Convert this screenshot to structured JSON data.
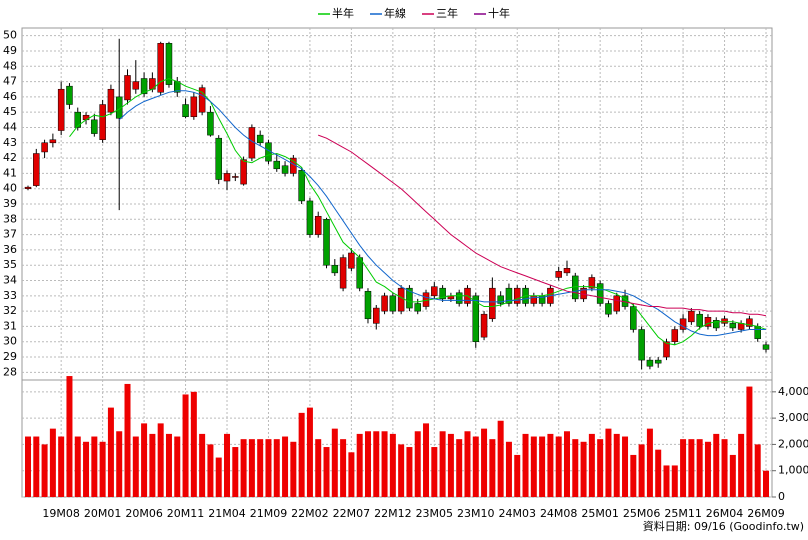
{
  "chart_data": {
    "type": "candlestick",
    "footnote": "資料日期: 09/16 (Goodinfo.tw)",
    "categories": [
      null,
      null,
      null,
      null,
      "19M08",
      null,
      null,
      null,
      null,
      "20M01",
      null,
      null,
      null,
      null,
      "20M06",
      null,
      null,
      null,
      null,
      "20M11",
      null,
      null,
      null,
      null,
      "21M04",
      null,
      null,
      null,
      null,
      "21M09",
      null,
      null,
      null,
      null,
      "22M02",
      null,
      null,
      null,
      null,
      "22M07",
      null,
      null,
      null,
      null,
      "22M12",
      null,
      null,
      null,
      null,
      "23M05",
      null,
      null,
      null,
      null,
      "23M10",
      null,
      null,
      null,
      null,
      "24M03",
      null,
      null,
      null,
      null,
      "24M08",
      null,
      null,
      null,
      null,
      "25M01",
      null,
      null,
      null,
      null,
      "25M06",
      null,
      null,
      null,
      null,
      "25M11",
      null,
      null,
      null,
      null,
      "26M04",
      null,
      null,
      null,
      null,
      "26M09"
    ],
    "open": [
      40,
      40.2,
      42.4,
      43,
      43.8,
      46.7,
      45,
      44.5,
      44.5,
      43.2,
      45,
      46,
      45.8,
      46.5,
      47.2,
      46.5,
      46.3,
      49.5,
      47,
      45.5,
      44.7,
      45,
      45,
      43.3,
      40.5,
      40.8,
      40.3,
      42,
      43.5,
      43,
      41.8,
      41.5,
      41,
      41.2,
      39.2,
      37,
      38,
      35,
      33.5,
      34.8,
      35.5,
      33.3,
      31.2,
      32,
      33,
      32,
      33.5,
      32.5,
      32.3,
      33,
      33.5,
      32.8,
      33.2,
      32.5,
      33,
      30.3,
      31.5,
      33,
      33.5,
      32.5,
      33.5,
      32.5,
      33,
      32.5,
      34.2,
      34.5,
      34.3,
      32.8,
      33.5,
      33.8,
      32.5,
      32,
      33,
      32.3,
      30.8,
      28.8,
      28.8,
      29,
      30,
      30.8,
      31.3,
      31.8,
      31,
      31.4,
      31.2,
      31.2,
      30.8,
      31,
      31,
      29.8
    ],
    "high": [
      40.2,
      42.6,
      43.2,
      43.6,
      47,
      46.9,
      45.3,
      45,
      44.9,
      45.8,
      46.8,
      49.8,
      47.8,
      48.4,
      47.6,
      47.6,
      49.6,
      49.6,
      47.3,
      45.9,
      46.3,
      46.8,
      45.4,
      43.5,
      41.2,
      41,
      42.1,
      44.2,
      43.8,
      43.2,
      42.3,
      41.8,
      42.2,
      41.4,
      39.4,
      38.5,
      38.1,
      35.4,
      35.7,
      36.1,
      35.7,
      33.5,
      32.4,
      33.2,
      33.2,
      33.7,
      33.7,
      32.8,
      33.4,
      33.9,
      33.7,
      33.2,
      33.4,
      33.7,
      33.2,
      32,
      34.2,
      33.3,
      33.8,
      33.7,
      33.7,
      33.2,
      33.2,
      33.7,
      34.9,
      35.3,
      34.5,
      33.7,
      34.4,
      34,
      32.7,
      33.2,
      33.4,
      32.5,
      31,
      29,
      29,
      30.2,
      31,
      31.8,
      32.2,
      32,
      31.8,
      31.6,
      31.7,
      31.4,
      31.4,
      31.7,
      31.2,
      30
    ],
    "low": [
      39.9,
      40.1,
      42,
      42.7,
      43.5,
      45.2,
      43.8,
      44.2,
      43.4,
      43,
      44.8,
      38.6,
      45.5,
      46.2,
      46,
      46.3,
      46.1,
      46.6,
      46,
      44.6,
      44.5,
      44.8,
      43.4,
      40.3,
      39.9,
      40.5,
      40.2,
      41.8,
      42.8,
      41.6,
      41.1,
      40.8,
      40.8,
      39,
      36.8,
      36.8,
      34.8,
      34.3,
      33.3,
      34.6,
      33.3,
      31.2,
      30.8,
      31.8,
      31.8,
      31.8,
      32,
      31.8,
      32.1,
      32.8,
      32.6,
      32.6,
      32.3,
      32.3,
      29.6,
      30.1,
      31.3,
      32.3,
      32.3,
      32.3,
      32.3,
      32.3,
      32.3,
      32.3,
      34,
      34.3,
      32.6,
      32.6,
      33.3,
      32.3,
      31.6,
      31.8,
      32.1,
      30.6,
      28.2,
      28.2,
      28.3,
      28.8,
      29.8,
      30.6,
      31.1,
      30.8,
      30.8,
      30.7,
      31,
      30.7,
      30.6,
      30.8,
      30,
      29.3
    ],
    "close": [
      40.1,
      42.3,
      43,
      43.2,
      46.5,
      45.5,
      44,
      44.8,
      43.6,
      45.5,
      46.5,
      44.6,
      47.4,
      47,
      46.2,
      47.2,
      49.5,
      46.8,
      46.3,
      44.7,
      46,
      46.6,
      43.5,
      40.6,
      41,
      40.8,
      41.9,
      44,
      43,
      41.8,
      41.3,
      41,
      42,
      39.2,
      37,
      38.2,
      35,
      34.5,
      35.5,
      35.8,
      33.5,
      31.5,
      32.2,
      33,
      32,
      33.5,
      32.2,
      32,
      33.2,
      33.6,
      32.8,
      33,
      32.5,
      33.5,
      30,
      31.8,
      33.5,
      32.5,
      32.5,
      33.5,
      32.5,
      33,
      32.5,
      33.5,
      34.6,
      34.8,
      32.8,
      33.5,
      34.2,
      32.5,
      31.8,
      33,
      32.3,
      30.8,
      28.8,
      28.4,
      28.6,
      30,
      30.8,
      31.5,
      32,
      31,
      31.6,
      30.9,
      31.5,
      30.9,
      31.2,
      31.5,
      30.2,
      29.5
    ],
    "up_color": "#e00000",
    "down_color": "#00a000",
    "ylim": [
      27.5,
      50.5
    ],
    "yticks": [
      28,
      29,
      30,
      31,
      32,
      33,
      34,
      35,
      36,
      37,
      38,
      39,
      40,
      41,
      42,
      43,
      44,
      45,
      46,
      47,
      48,
      49,
      50
    ],
    "grid": true,
    "series": [
      {
        "name": "半年",
        "color": "#00cc00",
        "values": [
          null,
          null,
          null,
          null,
          null,
          43.4,
          44.1,
          44.5,
          44.8,
          44.7,
          44.9,
          45.2,
          45.6,
          46.0,
          46.3,
          46.5,
          47.0,
          47.2,
          47.0,
          46.7,
          46.5,
          46.3,
          45.7,
          44.6,
          43.6,
          42.5,
          41.8,
          41.7,
          42.0,
          42.2,
          42.3,
          42.1,
          41.8,
          41.4,
          40.3,
          39.5,
          38.5,
          37.5,
          36.5,
          36.0,
          35.5,
          34.7,
          33.9,
          33.6,
          33.2,
          32.9,
          32.6,
          32.6,
          32.7,
          32.8,
          32.9,
          33.0,
          33.0,
          33.0,
          32.6,
          32.3,
          32.3,
          32.4,
          32.6,
          32.8,
          33.0,
          33.0,
          33.0,
          33.1,
          33.3,
          33.5,
          33.6,
          33.6,
          33.6,
          33.5,
          33.3,
          33.1,
          32.8,
          32.4,
          31.7,
          31.0,
          30.3,
          29.9,
          29.8,
          30.0,
          30.4,
          30.9,
          31.2,
          31.3,
          31.3,
          31.3,
          31.2,
          31.1,
          31.0,
          30.8
        ]
      },
      {
        "name": "年線",
        "color": "#1166cc",
        "values": [
          null,
          null,
          null,
          null,
          null,
          null,
          null,
          null,
          null,
          null,
          null,
          44.5,
          45.0,
          45.4,
          45.7,
          45.9,
          46.1,
          46.3,
          46.4,
          46.4,
          46.3,
          46.1,
          45.7,
          45.2,
          44.6,
          44.0,
          43.5,
          43.1,
          42.8,
          42.5,
          42.2,
          41.9,
          41.6,
          41.3,
          40.8,
          40.2,
          39.5,
          38.7,
          37.9,
          37.1,
          36.3,
          35.6,
          35.0,
          34.5,
          34.0,
          33.6,
          33.3,
          33.1,
          32.9,
          32.8,
          32.7,
          32.7,
          32.7,
          32.7,
          32.7,
          32.6,
          32.6,
          32.6,
          32.7,
          32.7,
          32.8,
          32.9,
          32.9,
          33.0,
          33.1,
          33.2,
          33.3,
          33.4,
          33.4,
          33.4,
          33.4,
          33.3,
          33.2,
          33.0,
          32.7,
          32.4,
          32.1,
          31.7,
          31.3,
          31.0,
          30.7,
          30.5,
          30.4,
          30.4,
          30.5,
          30.6,
          30.7,
          30.8,
          30.8,
          30.8
        ]
      },
      {
        "name": "三年",
        "color": "#cc0055",
        "values": [
          null,
          null,
          null,
          null,
          null,
          null,
          null,
          null,
          null,
          null,
          null,
          null,
          null,
          null,
          null,
          null,
          null,
          null,
          null,
          null,
          null,
          null,
          null,
          null,
          null,
          null,
          null,
          null,
          null,
          null,
          null,
          null,
          null,
          null,
          null,
          43.5,
          43.3,
          43.0,
          42.7,
          42.4,
          42.0,
          41.6,
          41.2,
          40.8,
          40.4,
          40.0,
          39.5,
          39.0,
          38.5,
          38.0,
          37.5,
          37.0,
          36.6,
          36.2,
          35.8,
          35.5,
          35.2,
          34.9,
          34.7,
          34.5,
          34.3,
          34.1,
          33.9,
          33.7,
          33.5,
          33.3,
          33.2,
          33.1,
          33.0,
          32.9,
          32.8,
          32.7,
          32.6,
          32.5,
          32.4,
          32.3,
          32.3,
          32.2,
          32.2,
          32.2,
          32.1,
          32.1,
          32.0,
          32.0,
          32.0,
          31.9,
          31.9,
          31.8,
          31.8,
          31.7
        ]
      },
      {
        "name": "十年",
        "color": "#880088",
        "values": [
          null,
          null,
          null,
          null,
          null,
          null,
          null,
          null,
          null,
          null,
          null,
          null,
          null,
          null,
          null,
          null,
          null,
          null,
          null,
          null,
          null,
          null,
          null,
          null,
          null,
          null,
          null,
          null,
          null,
          null,
          null,
          null,
          null,
          null,
          null,
          null,
          null,
          null,
          null,
          null,
          null,
          null,
          null,
          null,
          null,
          null,
          null,
          null,
          null,
          null,
          null,
          null,
          null,
          null,
          null,
          null,
          null,
          null,
          null,
          null,
          null,
          null,
          null,
          null,
          null,
          null,
          null,
          null,
          null,
          null,
          null,
          null,
          null,
          null,
          null,
          null,
          null,
          null,
          null,
          null,
          null,
          null,
          null,
          null,
          null,
          null,
          null,
          null,
          null,
          null
        ]
      }
    ],
    "volume": {
      "color": "#ee0000",
      "ylim": [
        0,
        4450
      ],
      "yticks": [
        0,
        {
          "value": 1000,
          "label": "1,000"
        },
        {
          "value": 2000,
          "label": "2,000"
        },
        {
          "value": 3000,
          "label": "3,000"
        },
        {
          "value": 4000,
          "label": "4,000"
        }
      ],
      "values": [
        2300,
        2300,
        2000,
        2600,
        2300,
        4600,
        2300,
        2100,
        2300,
        2100,
        3400,
        2500,
        4300,
        2300,
        2800,
        2400,
        2800,
        2400,
        2300,
        3900,
        4000,
        2400,
        2000,
        1500,
        2400,
        1900,
        2200,
        2200,
        2200,
        2200,
        2200,
        2300,
        2100,
        3200,
        3400,
        2200,
        1900,
        2600,
        2200,
        1700,
        2400,
        2500,
        2500,
        2500,
        2400,
        2000,
        1900,
        2500,
        2800,
        1900,
        2500,
        2400,
        2200,
        2500,
        2300,
        2600,
        2200,
        2900,
        2100,
        1600,
        2400,
        2300,
        2300,
        2400,
        2300,
        2500,
        2200,
        2100,
        2400,
        2200,
        2600,
        2400,
        2300,
        1600,
        2000,
        2600,
        1800,
        1200,
        1200,
        2200,
        2200,
        2200,
        2100,
        2400,
        2200,
        1600,
        2400,
        4200,
        2000,
        1000
      ]
    }
  }
}
